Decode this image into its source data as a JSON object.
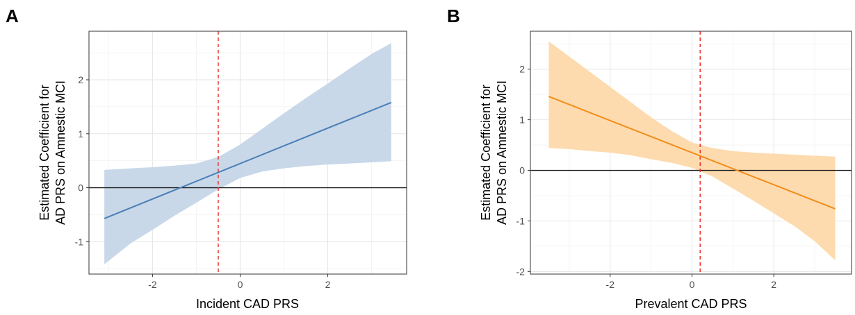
{
  "chart_data": [
    {
      "panel": "A",
      "type": "line",
      "xlabel": "Incident CAD PRS",
      "ylabel_lines": [
        "Estimated Coefficient for",
        "AD PRS on Amnestic MCI"
      ],
      "xlim": [
        -3.45,
        3.8
      ],
      "ylim": [
        -1.6,
        2.9
      ],
      "xticks": [
        -2,
        0,
        2
      ],
      "xtick_labels": [
        "-2",
        "0",
        "2"
      ],
      "yticks": [
        -1,
        0,
        1,
        2
      ],
      "ytick_labels": [
        "-1",
        "0",
        "1",
        "2"
      ],
      "grid": true,
      "line_color": "#4a7fb5",
      "band_color": "#c5d6e8",
      "vline": {
        "x": -0.5,
        "color": "#e8312a",
        "style": "dashed"
      },
      "hline": {
        "y": 0,
        "color": "#1a1a1a"
      },
      "series": [
        {
          "x": [
            -3.1,
            3.45
          ],
          "y": [
            -0.57,
            1.58
          ],
          "ci_x": [
            -3.1,
            -2.5,
            -2.0,
            -1.5,
            -1.0,
            -0.5,
            0.0,
            0.5,
            1.0,
            1.5,
            2.0,
            2.5,
            3.0,
            3.45
          ],
          "ci_lower": [
            -1.42,
            -1.03,
            -0.78,
            -0.52,
            -0.28,
            -0.03,
            0.18,
            0.3,
            0.36,
            0.4,
            0.43,
            0.45,
            0.47,
            0.49
          ],
          "ci_upper": [
            0.33,
            0.36,
            0.38,
            0.41,
            0.45,
            0.57,
            0.8,
            1.09,
            1.38,
            1.66,
            1.93,
            2.21,
            2.48,
            2.68
          ]
        }
      ]
    },
    {
      "panel": "B",
      "type": "line",
      "xlabel": "Prevalent CAD PRS",
      "ylabel_lines": [
        "Estimated Coefficient for",
        "AD PRS on Amnestic MCI"
      ],
      "xlim": [
        -3.95,
        3.9
      ],
      "ylim": [
        -2.05,
        2.75
      ],
      "xticks": [
        -2,
        0,
        2
      ],
      "xtick_labels": [
        "-2",
        "0",
        "2"
      ],
      "yticks": [
        -2,
        -1,
        0,
        1,
        2
      ],
      "ytick_labels": [
        "-2",
        "-1",
        "0",
        "1",
        "2"
      ],
      "grid": true,
      "line_color": "#f28c1a",
      "band_color": "#fdd9aa",
      "vline": {
        "x": 0.2,
        "color": "#e8312a",
        "style": "dashed"
      },
      "hline": {
        "y": 0,
        "color": "#1a1a1a"
      },
      "series": [
        {
          "x": [
            -3.5,
            3.5
          ],
          "y": [
            1.46,
            -0.76
          ],
          "ci_x": [
            -3.5,
            -3.0,
            -2.5,
            -2.0,
            -1.5,
            -1.0,
            -0.5,
            0.0,
            0.5,
            1.0,
            1.5,
            2.0,
            2.5,
            3.0,
            3.5
          ],
          "ci_lower": [
            0.44,
            0.42,
            0.38,
            0.35,
            0.3,
            0.22,
            0.15,
            0.05,
            -0.12,
            -0.36,
            -0.6,
            -0.85,
            -1.1,
            -1.4,
            -1.78
          ],
          "ci_upper": [
            2.55,
            2.25,
            1.95,
            1.65,
            1.35,
            1.05,
            0.78,
            0.55,
            0.44,
            0.38,
            0.35,
            0.33,
            0.31,
            0.29,
            0.27
          ]
        }
      ]
    }
  ]
}
